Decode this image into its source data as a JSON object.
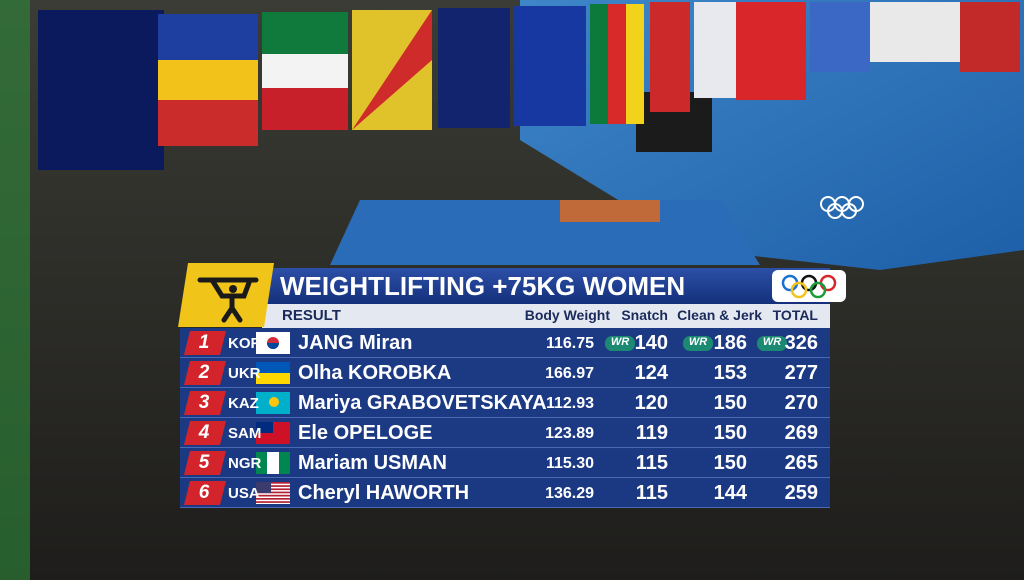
{
  "header": {
    "title": "WEIGHTLIFTING +75KG WOMEN",
    "subtitle": "RESULT"
  },
  "table": {
    "columns": [
      "Body Weight",
      "Snatch",
      "Clean & Jerk",
      "TOTAL"
    ],
    "rows": [
      {
        "rank": 1,
        "country": "KOR",
        "name": "JANG Miran",
        "body_weight": "116.75",
        "snatch": 140,
        "clean_jerk": 186,
        "total": 326,
        "badges": [
          "WR",
          "WR",
          "WR"
        ]
      },
      {
        "rank": 2,
        "country": "UKR",
        "name": "Olha KOROBKA",
        "body_weight": "166.97",
        "snatch": 124,
        "clean_jerk": 153,
        "total": 277
      },
      {
        "rank": 3,
        "country": "KAZ",
        "name": "Mariya GRABOVETSKAYA",
        "body_weight": "112.93",
        "snatch": 120,
        "clean_jerk": 150,
        "total": 270
      },
      {
        "rank": 4,
        "country": "SAM",
        "name": "Ele OPELOGE",
        "body_weight": "123.89",
        "snatch": 119,
        "clean_jerk": 150,
        "total": 269
      },
      {
        "rank": 5,
        "country": "NGR",
        "name": "Mariam USMAN",
        "body_weight": "115.30",
        "snatch": 115,
        "clean_jerk": 150,
        "total": 265
      },
      {
        "rank": 6,
        "country": "USA",
        "name": "Cheryl HAWORTH",
        "body_weight": "136.29",
        "snatch": 115,
        "clean_jerk": 144,
        "total": 259
      }
    ]
  }
}
